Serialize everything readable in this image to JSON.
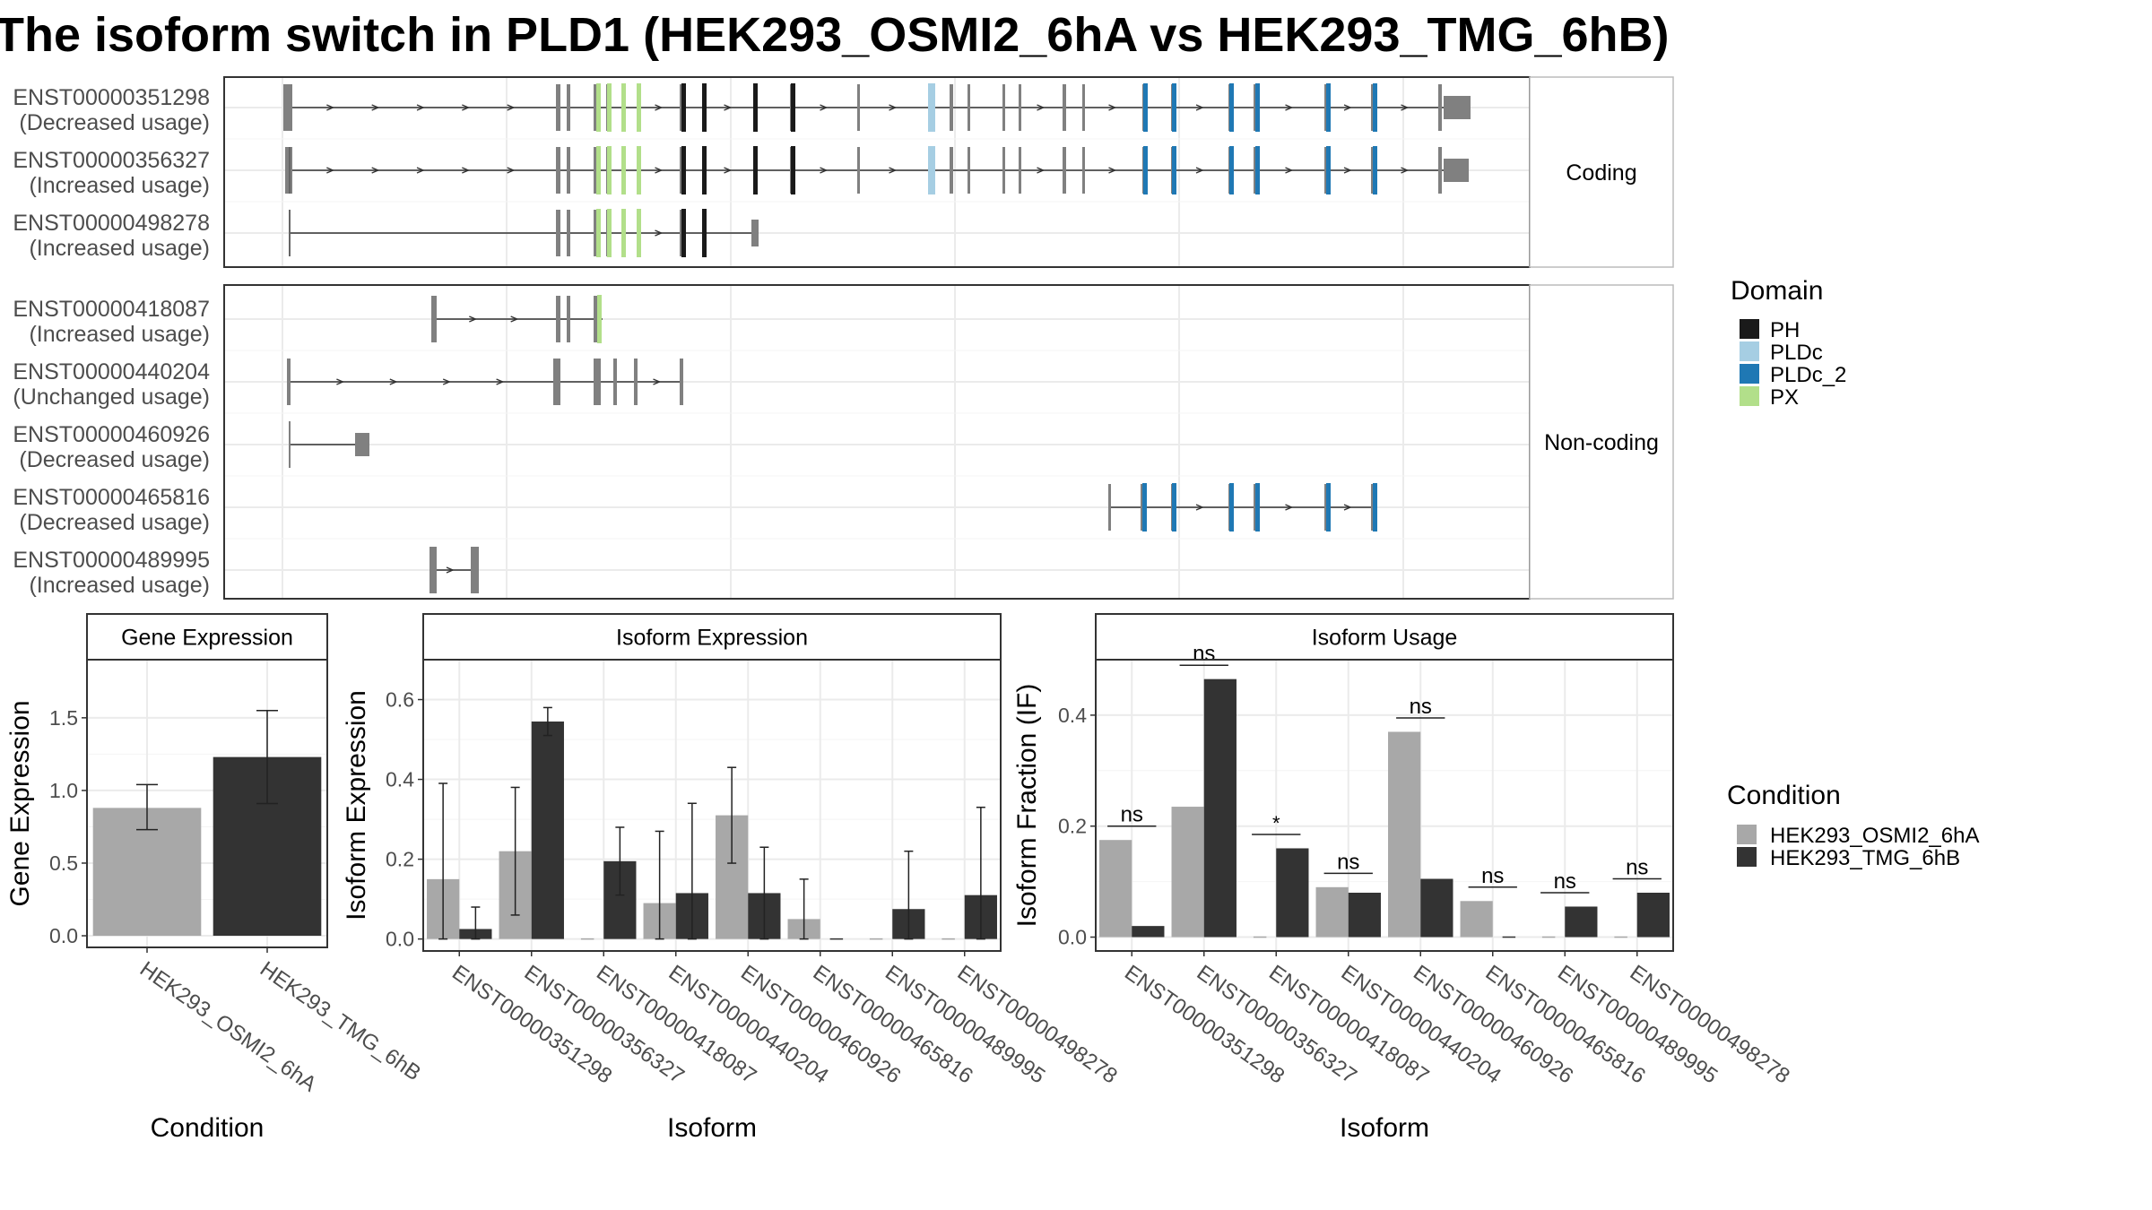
{
  "title": "The isoform switch in PLD1 (HEK293_OSMI2_6hA vs HEK293_TMG_6hB)",
  "colors": {
    "exon": "#808080",
    "PH": "#1a1a1a",
    "PLDc": "#a6cee3",
    "PLDc_2": "#1f78b4",
    "PX": "#b2df8a",
    "cond1": "#a8a8a8",
    "cond2": "#333333"
  },
  "structure": {
    "panels": [
      {
        "label": "Coding",
        "rows": [
          {
            "id": "ENST00000351298",
            "usage": "(Decreased usage)"
          },
          {
            "id": "ENST00000356327",
            "usage": "(Increased usage)"
          },
          {
            "id": "ENST00000498278",
            "usage": "(Increased usage)"
          }
        ]
      },
      {
        "label": "Non-coding",
        "rows": [
          {
            "id": "ENST00000418087",
            "usage": "(Increased usage)"
          },
          {
            "id": "ENST00000440204",
            "usage": "(Unchanged usage)"
          },
          {
            "id": "ENST00000460926",
            "usage": "(Decreased usage)"
          },
          {
            "id": "ENST00000465816",
            "usage": "(Decreased usage)"
          },
          {
            "id": "ENST00000489995",
            "usage": "(Increased usage)"
          }
        ]
      }
    ]
  },
  "legend_domain": {
    "title": "Domain",
    "items": [
      {
        "name": "PH",
        "color": "#1a1a1a"
      },
      {
        "name": "PLDc",
        "color": "#a6cee3"
      },
      {
        "name": "PLDc_2",
        "color": "#1f78b4"
      },
      {
        "name": "PX",
        "color": "#b2df8a"
      }
    ]
  },
  "legend_condition": {
    "title": "Condition",
    "items": [
      {
        "name": "HEK293_OSMI2_6hA",
        "color": "#a8a8a8"
      },
      {
        "name": "HEK293_TMG_6hB",
        "color": "#333333"
      }
    ]
  },
  "chart_data": [
    {
      "type": "bar",
      "title": "Gene Expression",
      "xlabel": "Condition",
      "ylabel": "Gene Expression",
      "ylim": [
        -0.08,
        1.9
      ],
      "yticks": [
        "0.0",
        "0.5",
        "1.0",
        "1.5"
      ],
      "categories": [
        "HEK293_OSMI2_6hA",
        "HEK293_TMG_6hB"
      ],
      "values": [
        0.88,
        1.23
      ],
      "err_low": [
        0.73,
        0.91
      ],
      "err_high": [
        1.04,
        1.55
      ]
    },
    {
      "type": "bar",
      "title": "Isoform Expression",
      "xlabel": "Isoform",
      "ylabel": "Isoform Expression",
      "ylim": [
        -0.03,
        0.7
      ],
      "yticks": [
        "0.0",
        "0.2",
        "0.4",
        "0.6"
      ],
      "categories": [
        "ENST00000351298",
        "ENST00000356327",
        "ENST00000418087",
        "ENST00000440204",
        "ENST00000460926",
        "ENST00000465816",
        "ENST00000489995",
        "ENST00000498278"
      ],
      "series": [
        {
          "name": "HEK293_OSMI2_6hA",
          "values": [
            0.15,
            0.22,
            0.0,
            0.09,
            0.31,
            0.05,
            0.0,
            0.0
          ],
          "err_low": [
            0.0,
            0.06,
            0.0,
            0.0,
            0.19,
            0.0,
            0.0,
            0.0
          ],
          "err_high": [
            0.39,
            0.38,
            0.0,
            0.27,
            0.43,
            0.15,
            0.0,
            0.0
          ]
        },
        {
          "name": "HEK293_TMG_6hB",
          "values": [
            0.025,
            0.545,
            0.195,
            0.115,
            0.115,
            0.0,
            0.075,
            0.11
          ],
          "err_low": [
            0.0,
            0.51,
            0.11,
            0.0,
            0.0,
            0.0,
            0.0,
            0.0
          ],
          "err_high": [
            0.08,
            0.58,
            0.28,
            0.34,
            0.23,
            0.0,
            0.22,
            0.33
          ]
        }
      ]
    },
    {
      "type": "bar",
      "title": "Isoform Usage",
      "xlabel": "Isoform",
      "ylabel": "Isoform Fraction (IF)",
      "ylim": [
        -0.025,
        0.5
      ],
      "yticks": [
        "0.0",
        "0.2",
        "0.4"
      ],
      "categories": [
        "ENST00000351298",
        "ENST00000356327",
        "ENST00000418087",
        "ENST00000440204",
        "ENST00000460926",
        "ENST00000465816",
        "ENST00000489995",
        "ENST00000498278"
      ],
      "series": [
        {
          "name": "HEK293_OSMI2_6hA",
          "values": [
            0.175,
            0.235,
            0.0,
            0.09,
            0.37,
            0.065,
            0.0,
            0.0
          ]
        },
        {
          "name": "HEK293_TMG_6hB",
          "values": [
            0.02,
            0.465,
            0.16,
            0.08,
            0.105,
            0.0,
            0.055,
            0.08
          ]
        }
      ],
      "significance": [
        "ns",
        "ns",
        "*",
        "ns",
        "ns",
        "ns",
        "ns",
        "ns"
      ],
      "sig_y": [
        0.2,
        0.49,
        0.185,
        0.115,
        0.395,
        0.09,
        0.08,
        0.105
      ]
    }
  ]
}
